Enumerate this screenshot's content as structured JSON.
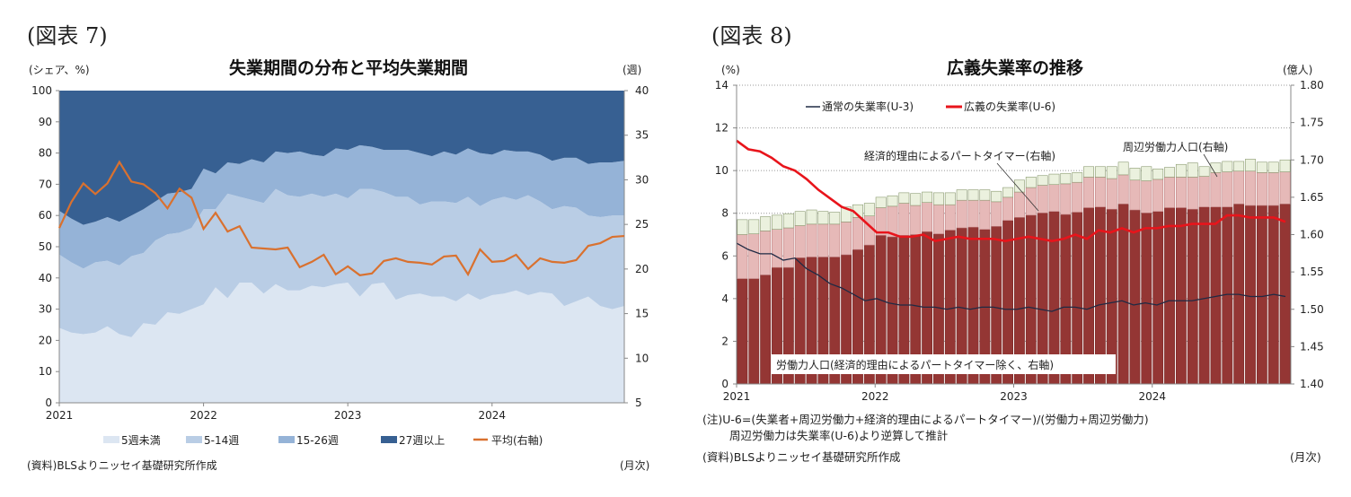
{
  "figures": [
    {
      "label": "(図表 7)",
      "source": "(資料)BLSよりニッセイ基礎研究所作成",
      "frequency": "(月次)"
    },
    {
      "label": "(図表 8)",
      "notes": [
        "(注)U-6=(失業者+周辺労働力+経済的理由によるパートタイマー)/(労働力+周辺労働力)",
        "周辺労働力は失業率(U-6)より逆算して推計"
      ],
      "source": "(資料)BLSよりニッセイ基礎研究所作成",
      "frequency": "(月次)"
    }
  ],
  "chart_data": [
    {
      "type": "area",
      "stacked": true,
      "title": "失業期間の分布と平均失業期間",
      "ylabel": "(シェア、%)",
      "y2label": "(週)",
      "ylim": [
        0,
        100
      ],
      "y2lim": [
        5,
        40
      ],
      "yticks": [
        0,
        10,
        20,
        30,
        40,
        50,
        60,
        70,
        80,
        90,
        100
      ],
      "y2ticks": [
        5,
        10,
        15,
        20,
        25,
        30,
        35,
        40
      ],
      "xticks": [
        "2021",
        "2022",
        "2023",
        "2024"
      ],
      "x_range": [
        "2021-01",
        "2024-12"
      ],
      "legend_position": "bottom",
      "grid": false,
      "series": [
        {
          "name": "5週未満",
          "color": "#dce6f2",
          "values": [
            24,
            22.5,
            22,
            22.5,
            24.5,
            22,
            21,
            25.5,
            25,
            29,
            28.5,
            30,
            31.5,
            37,
            33.5,
            38.5,
            38.5,
            35,
            38,
            36,
            36,
            37.5,
            37,
            38,
            38.5,
            34,
            38,
            38.5,
            33,
            34.5,
            35,
            34,
            34,
            32.5,
            35,
            33,
            34.5,
            35,
            36,
            34.5,
            35.5,
            35,
            31,
            32.5,
            34,
            31,
            30,
            31
          ]
        },
        {
          "name": "5-14週",
          "color": "#b9cde5",
          "values": [
            23.5,
            22.5,
            21,
            22.5,
            21,
            22,
            26,
            22.5,
            27,
            25,
            26,
            26,
            30.5,
            25,
            33.5,
            27.5,
            26.5,
            29,
            30.5,
            30.5,
            30,
            29.5,
            29,
            29,
            27,
            34.5,
            30.5,
            29,
            33,
            31.5,
            28.5,
            30.5,
            30.5,
            31.5,
            31,
            30,
            30.5,
            31,
            29,
            32,
            29,
            27,
            32,
            30,
            26,
            28.5,
            30,
            29
          ]
        },
        {
          "name": "15-26週",
          "color": "#95b3d7",
          "values": [
            14,
            14,
            14,
            13,
            14,
            14,
            13,
            14,
            12.5,
            13,
            13,
            12.5,
            13,
            11.5,
            10,
            10.5,
            13,
            13,
            12,
            13.5,
            14.5,
            12.5,
            13,
            14.5,
            15.5,
            14,
            13.5,
            13.5,
            15,
            15,
            16.5,
            14.5,
            16,
            15.5,
            15.5,
            17,
            14.5,
            15,
            15.5,
            14,
            15,
            15.5,
            15.5,
            16,
            16.5,
            17.5,
            17,
            17.5
          ]
        },
        {
          "name": "27週以上",
          "color": "#376092",
          "values": "remainder"
        },
        {
          "name": "平均(右軸)",
          "color": "#d9712f",
          "type": "line",
          "axis": "right",
          "values": [
            24.6,
            27.5,
            29.6,
            28.4,
            29.6,
            32.0,
            29.8,
            29.5,
            28.5,
            26.8,
            29.0,
            28.0,
            24.5,
            26.3,
            24.2,
            24.8,
            22.4,
            22.3,
            22.2,
            22.4,
            20.2,
            20.8,
            21.6,
            19.4,
            20.3,
            19.3,
            19.5,
            20.9,
            21.2,
            20.8,
            20.7,
            20.5,
            21.4,
            21.5,
            19.4,
            22.2,
            20.8,
            20.9,
            21.6,
            20.0,
            21.2,
            20.8,
            20.7,
            21.0,
            22.6,
            22.9,
            23.6,
            23.7
          ]
        }
      ]
    },
    {
      "type": "bar",
      "stacked": true,
      "title": "広義失業率の推移",
      "ylabel": "(%)",
      "y2label": "(億人)",
      "ylim": [
        0,
        14
      ],
      "y2lim": [
        1.4,
        1.8
      ],
      "yticks": [
        0,
        2,
        4,
        6,
        8,
        10,
        12,
        14
      ],
      "y2ticks": [
        "1.40",
        "1.45",
        "1.50",
        "1.55",
        "1.60",
        "1.65",
        "1.70",
        "1.75",
        "1.80"
      ],
      "xticks": [
        "2021",
        "2022",
        "2023",
        "2024"
      ],
      "x_range": [
        "2021-01",
        "2024-12"
      ],
      "grid": true,
      "legend_position": "top-left",
      "annotations": [
        "経済的理由によるパートタイマー(右軸)",
        "周辺労働力人口(右軸)",
        "労働力人口(経済的理由によるパートタイマー除く、右軸)"
      ],
      "bar_series": [
        {
          "name": "労働力人口(経済的理由によるパートタイマー除く、右軸)",
          "color": "#943634",
          "axis": "right",
          "values": [
            1.541,
            1.541,
            1.546,
            1.556,
            1.556,
            1.569,
            1.57,
            1.57,
            1.57,
            1.573,
            1.58,
            1.586,
            1.599,
            1.597,
            1.599,
            1.6,
            1.604,
            1.601,
            1.606,
            1.609,
            1.61,
            1.607,
            1.611,
            1.619,
            1.623,
            1.626,
            1.629,
            1.631,
            1.627,
            1.63,
            1.636,
            1.637,
            1.634,
            1.641,
            1.633,
            1.629,
            1.631,
            1.636,
            1.636,
            1.634,
            1.637,
            1.637,
            1.637,
            1.641,
            1.639,
            1.639,
            1.639,
            1.641
          ]
        },
        {
          "name": "経済的理由によるパートタイマー(右軸)",
          "color": "#e6b9b8",
          "axis": "right",
          "values": [
            0.059,
            0.06,
            0.059,
            0.051,
            0.053,
            0.043,
            0.044,
            0.044,
            0.044,
            0.044,
            0.043,
            0.039,
            0.037,
            0.041,
            0.043,
            0.039,
            0.039,
            0.039,
            0.034,
            0.037,
            0.036,
            0.039,
            0.033,
            0.031,
            0.034,
            0.037,
            0.037,
            0.036,
            0.041,
            0.04,
            0.041,
            0.04,
            0.041,
            0.039,
            0.04,
            0.043,
            0.043,
            0.041,
            0.041,
            0.043,
            0.041,
            0.046,
            0.047,
            0.044,
            0.046,
            0.044,
            0.044,
            0.043
          ]
        },
        {
          "name": "周辺労働力人口(右軸)",
          "color": "#ebf1de",
          "axis": "right",
          "values": [
            0.02,
            0.019,
            0.019,
            0.019,
            0.019,
            0.019,
            0.019,
            0.017,
            0.016,
            0.02,
            0.017,
            0.017,
            0.014,
            0.014,
            0.014,
            0.016,
            0.014,
            0.016,
            0.016,
            0.014,
            0.014,
            0.014,
            0.014,
            0.013,
            0.016,
            0.014,
            0.013,
            0.014,
            0.014,
            0.013,
            0.014,
            0.014,
            0.016,
            0.017,
            0.016,
            0.019,
            0.014,
            0.013,
            0.017,
            0.019,
            0.013,
            0.013,
            0.014,
            0.013,
            0.016,
            0.014,
            0.014,
            0.016
          ]
        }
      ],
      "series": [
        {
          "name": "通常の失業率(U-3)",
          "color": "#1f2a44",
          "type": "line",
          "axis": "left",
          "values": [
            6.6,
            6.3,
            6.1,
            6.1,
            5.8,
            5.9,
            5.4,
            5.1,
            4.7,
            4.5,
            4.2,
            3.9,
            4.0,
            3.8,
            3.7,
            3.7,
            3.6,
            3.6,
            3.5,
            3.6,
            3.5,
            3.6,
            3.6,
            3.5,
            3.5,
            3.6,
            3.5,
            3.4,
            3.6,
            3.6,
            3.5,
            3.7,
            3.8,
            3.9,
            3.7,
            3.8,
            3.7,
            3.9,
            3.9,
            3.9,
            4.0,
            4.1,
            4.2,
            4.2,
            4.1,
            4.1,
            4.2,
            4.1
          ]
        },
        {
          "name": "広義の失業率(U-6)",
          "color": "#e8141b",
          "type": "line",
          "axis": "left",
          "values": [
            11.4,
            11.0,
            10.9,
            10.6,
            10.2,
            10.0,
            9.6,
            9.1,
            8.7,
            8.3,
            8.1,
            7.6,
            7.1,
            7.1,
            6.9,
            6.9,
            7.0,
            6.7,
            6.8,
            6.9,
            6.8,
            6.8,
            6.8,
            6.7,
            6.8,
            6.9,
            6.8,
            6.7,
            6.8,
            7.0,
            6.8,
            7.2,
            7.1,
            7.3,
            7.1,
            7.3,
            7.3,
            7.4,
            7.4,
            7.5,
            7.5,
            7.5,
            7.9,
            7.9,
            7.8,
            7.8,
            7.8,
            7.6
          ]
        }
      ]
    }
  ]
}
